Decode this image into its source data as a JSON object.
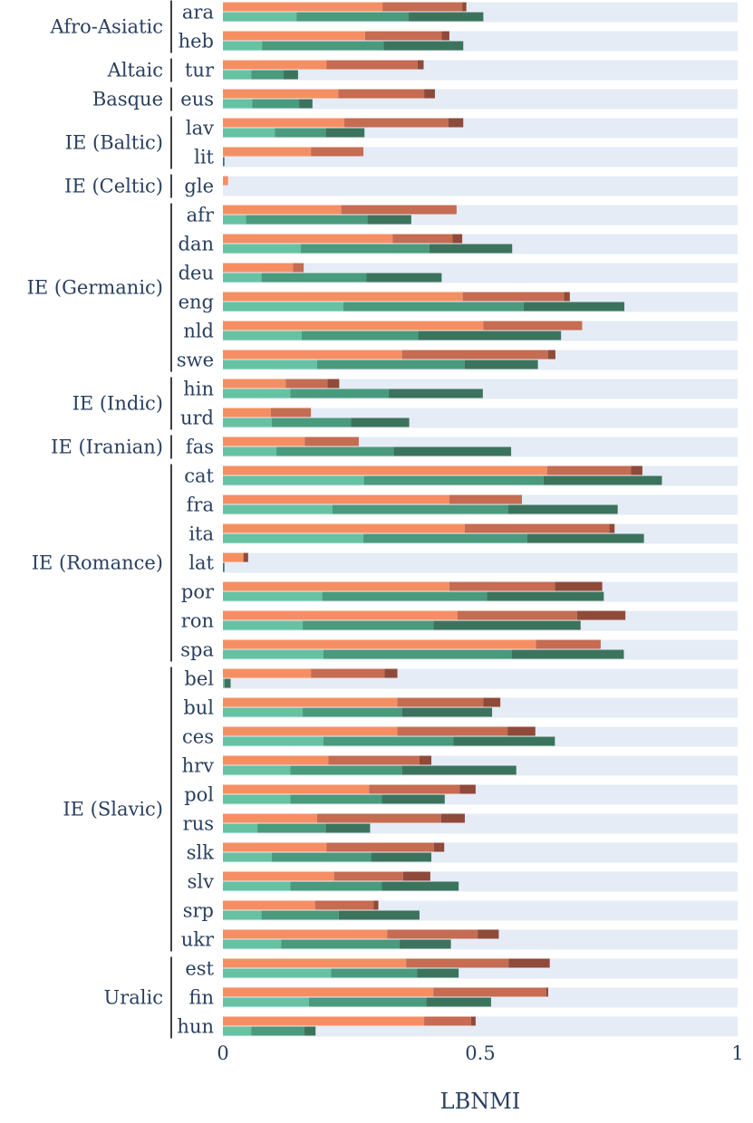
{
  "chart_data": {
    "type": "bar",
    "orientation": "horizontal",
    "stacked": true,
    "xlabel": "LBNMI",
    "xlim": [
      0,
      1
    ],
    "xticks": [
      0,
      0.5,
      1
    ],
    "xtick_labels": [
      "0",
      "0.5",
      "1"
    ],
    "series_colors": {
      "top": [
        "#f58f63",
        "#c56c52",
        "#8f4a3a"
      ],
      "bottom": [
        "#66c2a2",
        "#4a9a7d",
        "#3c735d"
      ]
    },
    "colors": {
      "panel_bg": "#e5ecf6",
      "text": "#2a3f5f"
    },
    "groups": [
      {
        "name": "Afro-Asiatic",
        "languages": [
          "ara",
          "heb"
        ]
      },
      {
        "name": "Altaic",
        "languages": [
          "tur"
        ]
      },
      {
        "name": "Basque",
        "languages": [
          "eus"
        ]
      },
      {
        "name": "IE (Baltic)",
        "languages": [
          "lav",
          "lit"
        ]
      },
      {
        "name": "IE (Celtic)",
        "languages": [
          "gle"
        ]
      },
      {
        "name": "IE (Germanic)",
        "languages": [
          "afr",
          "dan",
          "deu",
          "eng",
          "nld",
          "swe"
        ]
      },
      {
        "name": "IE (Indic)",
        "languages": [
          "hin",
          "urd"
        ]
      },
      {
        "name": "IE (Iranian)",
        "languages": [
          "fas"
        ]
      },
      {
        "name": "IE (Romance)",
        "languages": [
          "cat",
          "fra",
          "ita",
          "lat",
          "por",
          "ron",
          "spa"
        ]
      },
      {
        "name": "IE (Slavic)",
        "languages": [
          "bel",
          "bul",
          "ces",
          "hrv",
          "pol",
          "rus",
          "slk",
          "slv",
          "srp",
          "ukr"
        ]
      },
      {
        "name": "Uralic",
        "languages": [
          "est",
          "fin",
          "hun"
        ]
      }
    ],
    "rows": [
      {
        "lang": "ara",
        "top": [
          0.31,
          0.465,
          0.473
        ],
        "bottom": [
          0.143,
          0.361,
          0.506
        ]
      },
      {
        "lang": "heb",
        "top": [
          0.276,
          0.425,
          0.44
        ],
        "bottom": [
          0.076,
          0.312,
          0.467
        ]
      },
      {
        "lang": "tur",
        "top": [
          0.201,
          0.378,
          0.39
        ],
        "bottom": [
          0.055,
          0.118,
          0.146
        ]
      },
      {
        "lang": "eus",
        "top": [
          0.224,
          0.391,
          0.412
        ],
        "bottom": [
          0.057,
          0.148,
          0.174
        ]
      },
      {
        "lang": "lav",
        "top": [
          0.236,
          0.438,
          0.467
        ],
        "bottom": [
          0.101,
          0.2,
          0.275
        ]
      },
      {
        "lang": "lit",
        "top": [
          0.171,
          0.273,
          0.273
        ],
        "bottom": [
          0,
          0,
          0.003
        ]
      },
      {
        "lang": "gle",
        "top": [
          0.01,
          0.01,
          0.01
        ],
        "bottom": [
          0,
          0,
          0
        ]
      },
      {
        "lang": "afr",
        "top": [
          0.23,
          0.454,
          0.454
        ],
        "bottom": [
          0.045,
          0.281,
          0.366
        ]
      },
      {
        "lang": "dan",
        "top": [
          0.33,
          0.446,
          0.465
        ],
        "bottom": [
          0.151,
          0.401,
          0.562
        ]
      },
      {
        "lang": "deu",
        "top": [
          0.136,
          0.157,
          0.157
        ],
        "bottom": [
          0.075,
          0.279,
          0.425
        ]
      },
      {
        "lang": "eng",
        "top": [
          0.466,
          0.663,
          0.674
        ],
        "bottom": [
          0.234,
          0.584,
          0.78
        ]
      },
      {
        "lang": "nld",
        "top": [
          0.506,
          0.698,
          0.698
        ],
        "bottom": [
          0.153,
          0.379,
          0.657
        ]
      },
      {
        "lang": "swe",
        "top": [
          0.348,
          0.632,
          0.646
        ],
        "bottom": [
          0.183,
          0.47,
          0.612
        ]
      },
      {
        "lang": "hin",
        "top": [
          0.122,
          0.203,
          0.226
        ],
        "bottom": [
          0.131,
          0.322,
          0.505
        ]
      },
      {
        "lang": "urd",
        "top": [
          0.093,
          0.171,
          0.171
        ],
        "bottom": [
          0.095,
          0.249,
          0.362
        ]
      },
      {
        "lang": "fas",
        "top": [
          0.159,
          0.264,
          0.264
        ],
        "bottom": [
          0.104,
          0.332,
          0.56
        ]
      },
      {
        "lang": "cat",
        "top": [
          0.63,
          0.793,
          0.815
        ],
        "bottom": [
          0.274,
          0.623,
          0.853
        ]
      },
      {
        "lang": "fra",
        "top": [
          0.44,
          0.581,
          0.581
        ],
        "bottom": [
          0.213,
          0.554,
          0.767
        ]
      },
      {
        "lang": "ita",
        "top": [
          0.47,
          0.751,
          0.761
        ],
        "bottom": [
          0.273,
          0.591,
          0.818
        ]
      },
      {
        "lang": "lat",
        "top": [
          0.04,
          0.04,
          0.049
        ],
        "bottom": [
          0,
          0,
          0.003
        ]
      },
      {
        "lang": "por",
        "top": [
          0.44,
          0.645,
          0.737
        ],
        "bottom": [
          0.193,
          0.513,
          0.74
        ]
      },
      {
        "lang": "ron",
        "top": [
          0.456,
          0.688,
          0.782
        ],
        "bottom": [
          0.155,
          0.409,
          0.695
        ]
      },
      {
        "lang": "spa",
        "top": [
          0.608,
          0.734,
          0.734
        ],
        "bottom": [
          0.195,
          0.561,
          0.779
        ]
      },
      {
        "lang": "bel",
        "top": [
          0.171,
          0.314,
          0.339
        ],
        "bottom": [
          0.003,
          0.003,
          0.015
        ]
      },
      {
        "lang": "bul",
        "top": [
          0.339,
          0.506,
          0.539
        ],
        "bottom": [
          0.155,
          0.348,
          0.523
        ]
      },
      {
        "lang": "ces",
        "top": [
          0.339,
          0.553,
          0.607
        ],
        "bottom": [
          0.195,
          0.448,
          0.645
        ]
      },
      {
        "lang": "hrv",
        "top": [
          0.205,
          0.382,
          0.405
        ],
        "bottom": [
          0.131,
          0.348,
          0.57
        ]
      },
      {
        "lang": "pol",
        "top": [
          0.284,
          0.46,
          0.491
        ],
        "bottom": [
          0.131,
          0.309,
          0.431
        ]
      },
      {
        "lang": "rus",
        "top": [
          0.183,
          0.424,
          0.47
        ],
        "bottom": [
          0.067,
          0.2,
          0.286
        ]
      },
      {
        "lang": "slk",
        "top": [
          0.201,
          0.41,
          0.43
        ],
        "bottom": [
          0.095,
          0.288,
          0.405
        ]
      },
      {
        "lang": "slv",
        "top": [
          0.216,
          0.35,
          0.403
        ],
        "bottom": [
          0.131,
          0.309,
          0.458
        ]
      },
      {
        "lang": "srp",
        "top": [
          0.179,
          0.293,
          0.302
        ],
        "bottom": [
          0.075,
          0.225,
          0.382
        ]
      },
      {
        "lang": "ukr",
        "top": [
          0.319,
          0.495,
          0.536
        ],
        "bottom": [
          0.113,
          0.343,
          0.443
        ]
      },
      {
        "lang": "est",
        "top": [
          0.356,
          0.555,
          0.635
        ],
        "bottom": [
          0.21,
          0.377,
          0.458
        ]
      },
      {
        "lang": "fin",
        "top": [
          0.409,
          0.628,
          0.632
        ],
        "bottom": [
          0.167,
          0.395,
          0.521
        ]
      },
      {
        "lang": "hun",
        "top": [
          0.391,
          0.482,
          0.491
        ],
        "bottom": [
          0.055,
          0.158,
          0.18
        ]
      }
    ]
  }
}
